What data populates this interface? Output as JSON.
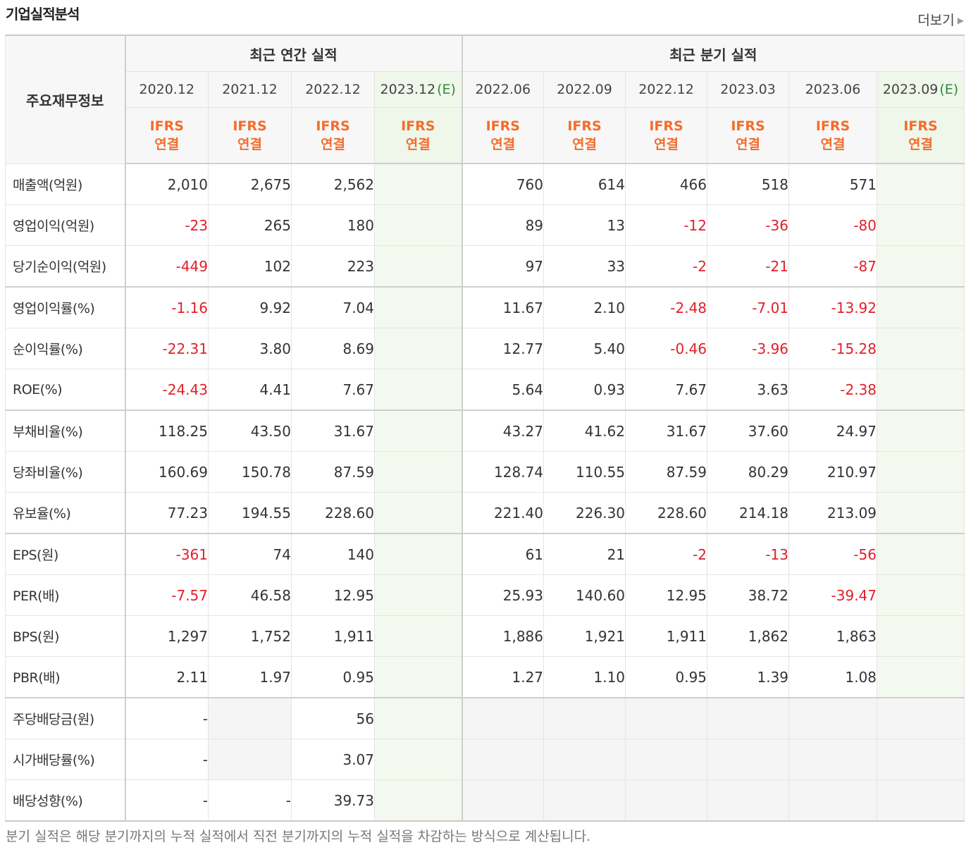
{
  "section_title": "기업실적분석",
  "more_label": "더보기",
  "corner_label": "주요재무정보",
  "annual_group_label": "최근 연간 실적",
  "quarter_group_label": "최근 분기 실적",
  "estimate_mark": "(E)",
  "annual_periods": [
    {
      "date": "2020.12",
      "estimate": false
    },
    {
      "date": "2021.12",
      "estimate": false
    },
    {
      "date": "2022.12",
      "estimate": false
    },
    {
      "date": "2023.12",
      "estimate": true
    }
  ],
  "quarter_periods": [
    {
      "date": "2022.06",
      "estimate": false
    },
    {
      "date": "2022.09",
      "estimate": false
    },
    {
      "date": "2022.12",
      "estimate": false
    },
    {
      "date": "2023.03",
      "estimate": false
    },
    {
      "date": "2023.06",
      "estimate": false
    },
    {
      "date": "2023.09",
      "estimate": true
    }
  ],
  "accounting_line1": "IFRS",
  "accounting_line2": "연결",
  "rows": [
    {
      "label": "매출액(억원)",
      "values": [
        "2,010",
        "2,675",
        "2,562",
        "",
        "760",
        "614",
        "466",
        "518",
        "571",
        ""
      ]
    },
    {
      "label": "영업이익(억원)",
      "values": [
        "-23",
        "265",
        "180",
        "",
        "89",
        "13",
        "-12",
        "-36",
        "-80",
        ""
      ]
    },
    {
      "label": "당기순이익(억원)",
      "values": [
        "-449",
        "102",
        "223",
        "",
        "97",
        "33",
        "-2",
        "-21",
        "-87",
        ""
      ]
    },
    {
      "label": "영업이익률(%)",
      "group_start": true,
      "values": [
        "-1.16",
        "9.92",
        "7.04",
        "",
        "11.67",
        "2.10",
        "-2.48",
        "-7.01",
        "-13.92",
        ""
      ]
    },
    {
      "label": "순이익률(%)",
      "values": [
        "-22.31",
        "3.80",
        "8.69",
        "",
        "12.77",
        "5.40",
        "-0.46",
        "-3.96",
        "-15.28",
        ""
      ]
    },
    {
      "label": "ROE(%)",
      "values": [
        "-24.43",
        "4.41",
        "7.67",
        "",
        "5.64",
        "0.93",
        "7.67",
        "3.63",
        "-2.38",
        ""
      ]
    },
    {
      "label": "부채비율(%)",
      "group_start": true,
      "values": [
        "118.25",
        "43.50",
        "31.67",
        "",
        "43.27",
        "41.62",
        "31.67",
        "37.60",
        "24.97",
        ""
      ]
    },
    {
      "label": "당좌비율(%)",
      "values": [
        "160.69",
        "150.78",
        "87.59",
        "",
        "128.74",
        "110.55",
        "87.59",
        "80.29",
        "210.97",
        ""
      ]
    },
    {
      "label": "유보율(%)",
      "values": [
        "77.23",
        "194.55",
        "228.60",
        "",
        "221.40",
        "226.30",
        "228.60",
        "214.18",
        "213.09",
        ""
      ]
    },
    {
      "label": "EPS(원)",
      "group_start": true,
      "values": [
        "-361",
        "74",
        "140",
        "",
        "61",
        "21",
        "-2",
        "-13",
        "-56",
        ""
      ]
    },
    {
      "label": "PER(배)",
      "values": [
        "-7.57",
        "46.58",
        "12.95",
        "",
        "25.93",
        "140.60",
        "12.95",
        "38.72",
        "-39.47",
        ""
      ]
    },
    {
      "label": "BPS(원)",
      "values": [
        "1,297",
        "1,752",
        "1,911",
        "",
        "1,886",
        "1,921",
        "1,911",
        "1,862",
        "1,863",
        ""
      ]
    },
    {
      "label": "PBR(배)",
      "values": [
        "2.11",
        "1.97",
        "0.95",
        "",
        "1.27",
        "1.10",
        "0.95",
        "1.39",
        "1.08",
        ""
      ]
    },
    {
      "label": "주당배당금(원)",
      "group_start": true,
      "na_cols": [
        1,
        4,
        5,
        6,
        7,
        8,
        9
      ],
      "values": [
        "-",
        "",
        "56",
        "",
        "",
        "",
        "",
        "",
        "",
        ""
      ]
    },
    {
      "label": "시가배당률(%)",
      "na_cols": [
        1,
        4,
        5,
        6,
        7,
        8,
        9
      ],
      "values": [
        "-",
        "",
        "3.07",
        "",
        "",
        "",
        "",
        "",
        "",
        ""
      ]
    },
    {
      "label": "배당성향(%)",
      "na_cols": [
        4,
        5,
        6,
        7,
        8,
        9
      ],
      "values": [
        "-",
        "-",
        "39.73",
        "",
        "",
        "",
        "",
        "",
        "",
        ""
      ]
    }
  ],
  "footnote": "분기 실적은 해당 분기까지의 누적 실적에서 직전 분기까지의 누적 실적을 차감하는 방식으로 계산됩니다."
}
